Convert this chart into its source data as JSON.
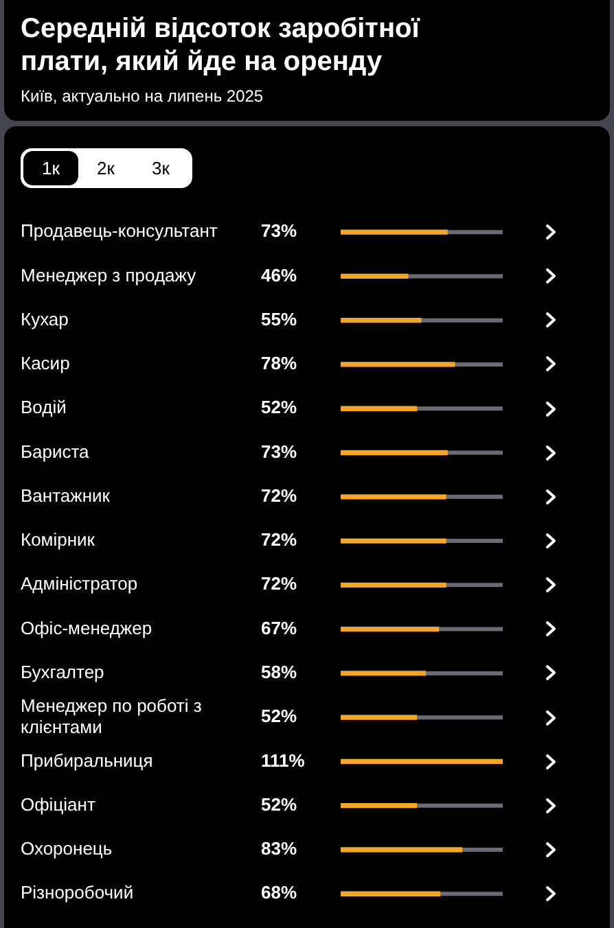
{
  "chart_data": {
    "type": "bar",
    "orientation": "horizontal",
    "title": "Середній відсоток заробітної плати, який йде на оренду",
    "subtitle": "Київ, актуально на липень 2025",
    "annotations": [
      "1к",
      "2к",
      "3к"
    ],
    "categories": [
      "Продавець-консультант",
      "Менеджер з продажу",
      "Кухар",
      "Касир",
      "Водій",
      "Бариста",
      "Вантажник",
      "Комірник",
      "Адміністратор",
      "Офіс-менеджер",
      "Бухгалтер",
      "Менеджер по роботі з клієнтами",
      "Прибиральниця",
      "Офіціант",
      "Охоронець",
      "Різноробочий"
    ],
    "values": [
      73,
      46,
      55,
      78,
      52,
      73,
      72,
      72,
      72,
      67,
      58,
      52,
      111,
      52,
      83,
      68
    ],
    "value_labels": [
      "73%",
      "46%",
      "55%",
      "78%",
      "52%",
      "73%",
      "72%",
      "72%",
      "72%",
      "67%",
      "58%",
      "52%",
      "111%",
      "52%",
      "83%",
      "68%"
    ],
    "color": "#f5a623",
    "xlim": [
      0,
      111
    ],
    "tick_labels": "y"
  }
}
